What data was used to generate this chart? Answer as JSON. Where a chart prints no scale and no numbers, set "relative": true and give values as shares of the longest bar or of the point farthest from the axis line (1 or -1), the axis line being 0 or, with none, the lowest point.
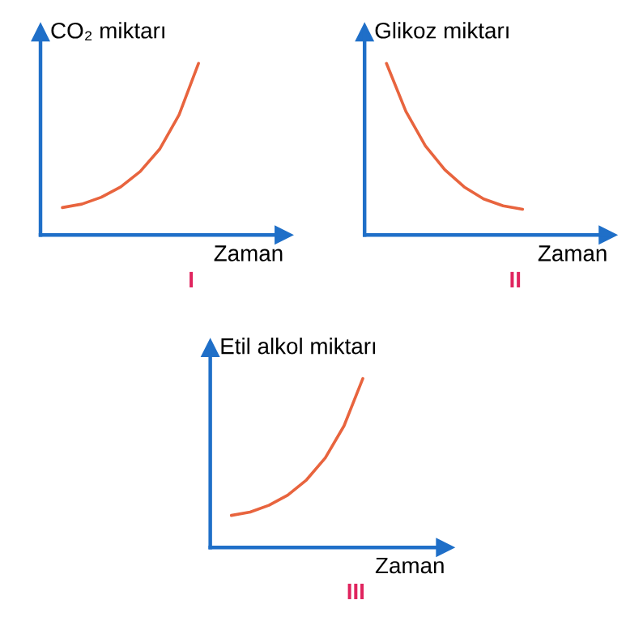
{
  "chart_data": [
    {
      "type": "line",
      "relative": true,
      "ylabel": "CO₂ miktarı",
      "xlabel": "Zaman",
      "annotations": [
        "I"
      ],
      "categories": [
        null,
        null,
        null,
        null,
        null,
        null,
        null,
        null
      ],
      "color": "#e8643e",
      "values": [
        0.16,
        0.18,
        0.22,
        0.28,
        0.37,
        0.5,
        0.7,
        1.0
      ]
    },
    {
      "type": "line",
      "relative": true,
      "ylabel": "Glikoz miktarı",
      "xlabel": "Zaman",
      "annotations": [
        "II"
      ],
      "categories": [
        null,
        null,
        null,
        null,
        null,
        null,
        null,
        null
      ],
      "color": "#e8643e",
      "values": [
        1.0,
        0.72,
        0.52,
        0.38,
        0.28,
        0.21,
        0.17,
        0.15
      ]
    },
    {
      "type": "line",
      "relative": true,
      "ylabel": "Etil alkol miktarı",
      "xlabel": "Zaman",
      "annotations": [
        "III"
      ],
      "categories": [
        null,
        null,
        null,
        null,
        null,
        null,
        null,
        null
      ],
      "color": "#e8643e",
      "values": [
        0.19,
        0.21,
        0.25,
        0.31,
        0.4,
        0.53,
        0.72,
        1.0
      ]
    }
  ]
}
